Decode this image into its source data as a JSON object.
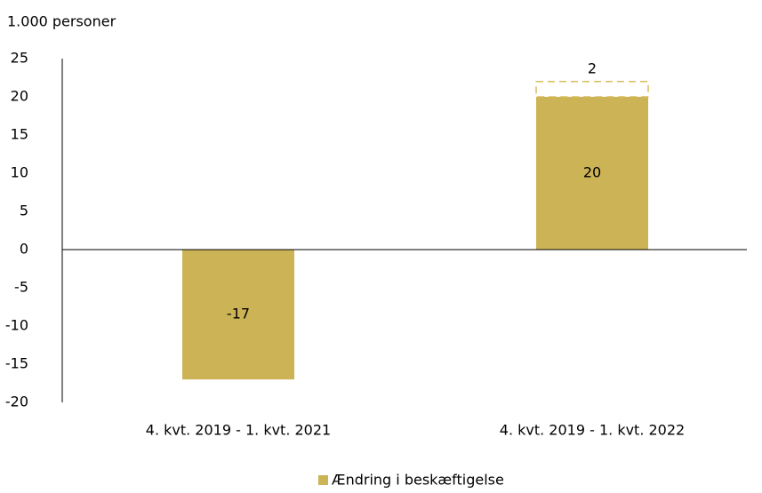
{
  "chart_data": {
    "type": "bar",
    "y_label": "1.000 personer",
    "categories": [
      "4. kvt. 2019 - 1. kvt. 2021",
      "4. kvt. 2019 - 1. kvt. 2022"
    ],
    "series": [
      {
        "name": "Ændring i beskæftigelse",
        "color": "#ccb356",
        "values": [
          -17,
          20
        ]
      },
      {
        "color": "#d9bd5e",
        "style": "dashed",
        "values": [
          null,
          2
        ]
      }
    ],
    "stacked": true,
    "ylim": [
      -20,
      25
    ],
    "yticks": [
      -20,
      -15,
      -10,
      -5,
      0,
      5,
      10,
      15,
      20,
      25
    ],
    "data_labels": true,
    "legend": "bottom"
  }
}
